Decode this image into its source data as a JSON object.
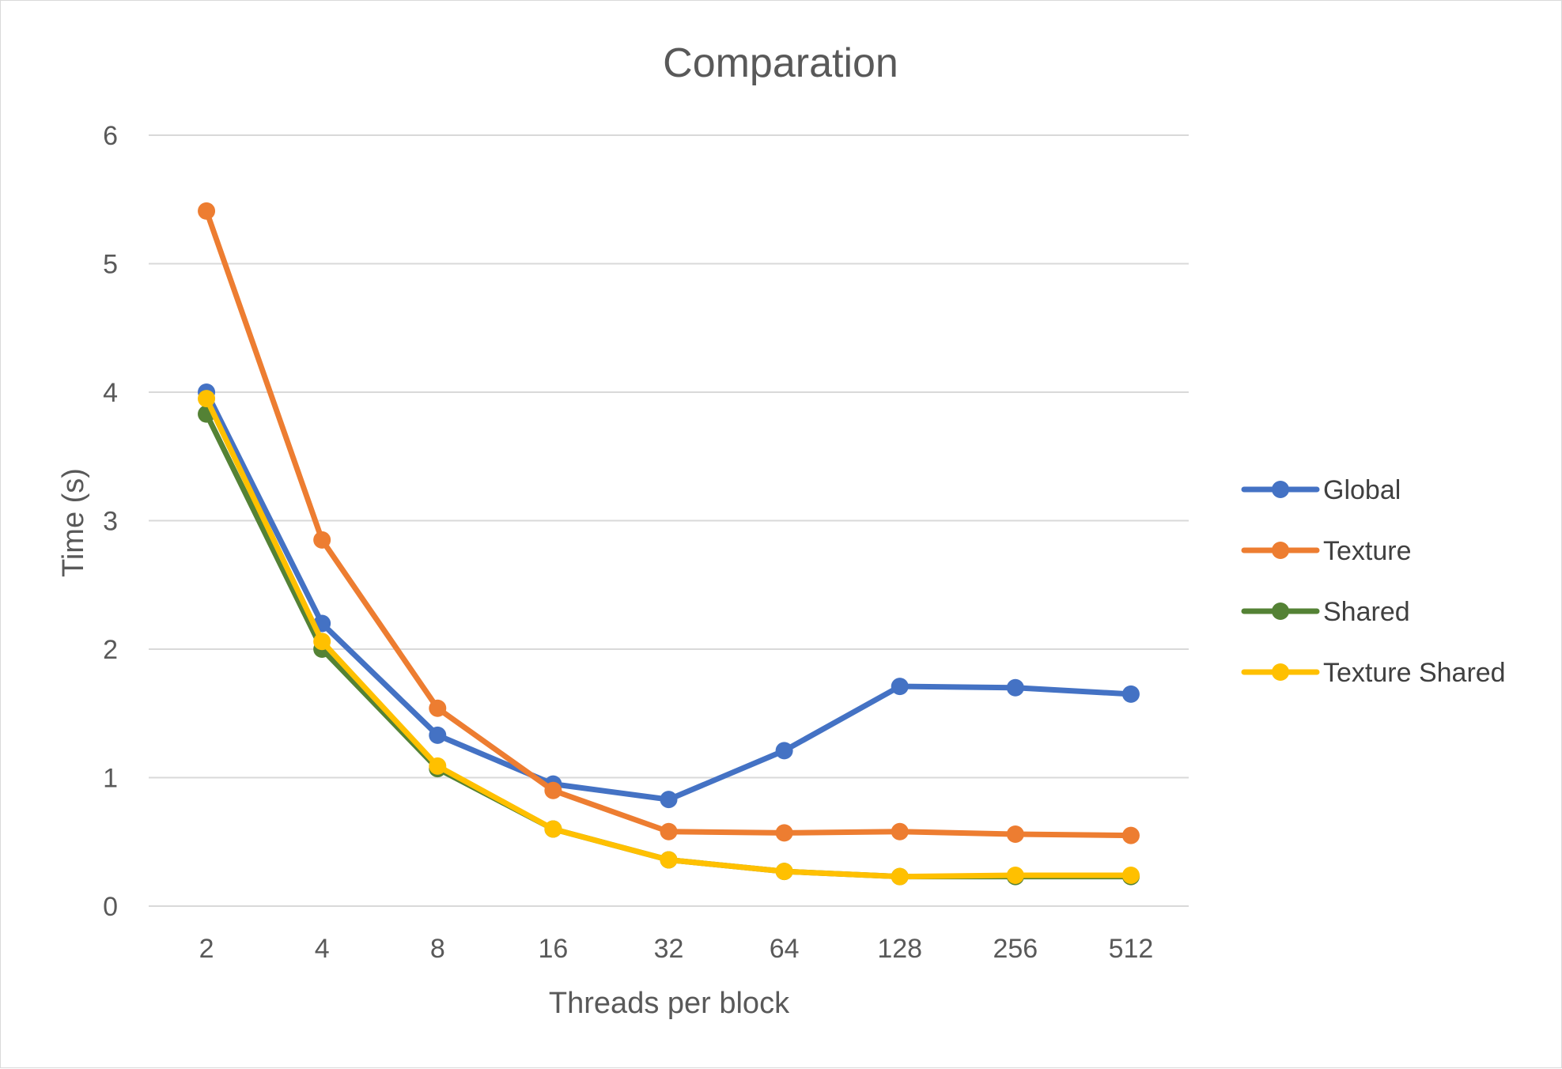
{
  "chart_data": {
    "type": "line",
    "title": "Comparation",
    "xlabel": "Threads per block",
    "ylabel": "Time (s)",
    "categories": [
      "2",
      "4",
      "8",
      "16",
      "32",
      "64",
      "128",
      "256",
      "512"
    ],
    "ylim": [
      0,
      6
    ],
    "yticks": [
      "0",
      "1",
      "2",
      "3",
      "4",
      "5",
      "6"
    ],
    "grid": true,
    "legend": "right",
    "series": [
      {
        "name": "Global",
        "color": "#4472C4",
        "values": [
          4.0,
          2.2,
          1.33,
          0.95,
          0.83,
          1.21,
          1.71,
          1.7,
          1.65
        ]
      },
      {
        "name": "Texture",
        "color": "#ED7D31",
        "values": [
          5.41,
          2.85,
          1.54,
          0.9,
          0.58,
          0.57,
          0.58,
          0.56,
          0.55
        ]
      },
      {
        "name": "Shared",
        "color": "#548235",
        "values": [
          3.83,
          2.0,
          1.07,
          0.6,
          0.36,
          0.27,
          0.23,
          0.23,
          0.23
        ]
      },
      {
        "name": "Texture Shared",
        "color": "#FFC000",
        "values": [
          3.95,
          2.06,
          1.09,
          0.6,
          0.36,
          0.27,
          0.23,
          0.24,
          0.24
        ]
      }
    ]
  }
}
